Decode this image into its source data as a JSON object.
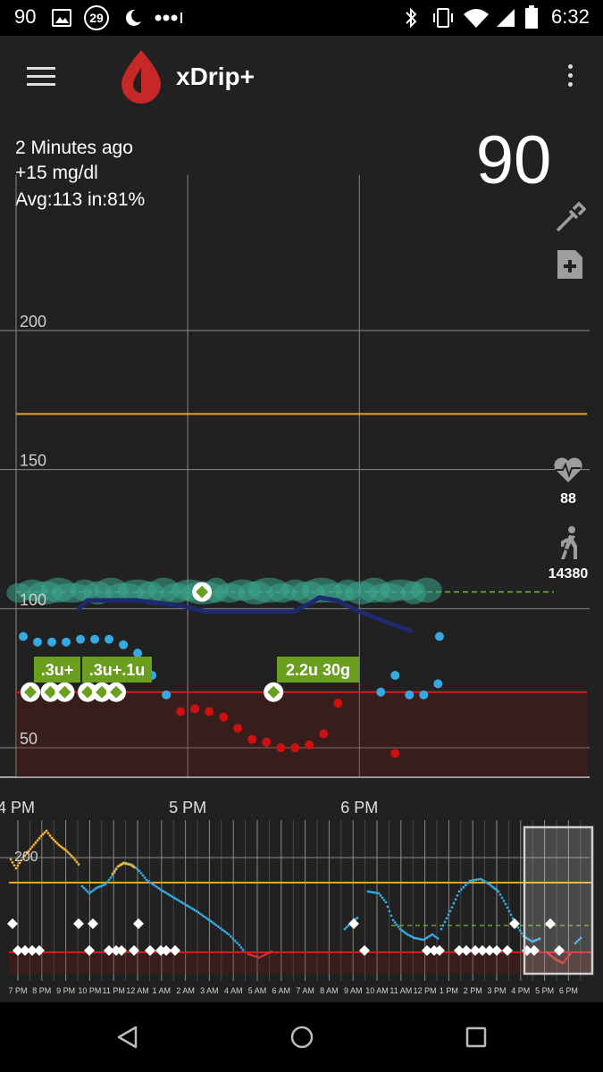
{
  "status_bar": {
    "notification_count": "90",
    "calendar_day": "29",
    "time": "6:32"
  },
  "app_bar": {
    "title": "xDrip+"
  },
  "info": {
    "last_reading": "2 Minutes ago",
    "delta": "+15 mg/dl",
    "stats": "Avg:113 in:81%"
  },
  "current_bg": "90",
  "heart_rate": "88",
  "steps": "14380",
  "colors": {
    "high_line": "#e8a531",
    "low_line": "#cc1f1f",
    "in_range": "#36a9e1",
    "low_reading": "#cc1111",
    "high_reading": "#f5b432",
    "treatment_label": "#6a9e1f",
    "iob_cloud": "#3aa58c",
    "prediction": "#1f2a6e"
  },
  "icons": [
    "menu-icon",
    "xdrip-drop-logo",
    "overflow-icon",
    "blood-test-icon",
    "add-note-icon",
    "heart-icon",
    "walk-icon",
    "back-icon",
    "home-icon",
    "recents-icon"
  ],
  "treatments": {
    "labels": [
      ".3u+",
      ".3u+.1u",
      "2.2u 30g"
    ]
  },
  "chart_data": [
    {
      "type": "scatter",
      "name": "main",
      "y_ticks": [
        200,
        150,
        100,
        50
      ],
      "x_ticks": [
        "4 PM",
        "5 PM",
        "6 PM"
      ],
      "ylim": [
        20,
        240
      ],
      "x_unit": "minutes after 4 PM",
      "xlim": [
        0,
        188
      ],
      "high_threshold": 170,
      "low_threshold": 70,
      "target": 106,
      "series": [
        {
          "name": "in_range",
          "x": [
            2.5,
            7.5,
            12.5,
            17.5,
            22.5,
            27.5,
            32.5,
            37.5,
            42.5,
            47.5,
            52.5,
            127.5,
            132.5,
            137.5,
            142.5,
            147.5
          ],
          "y": [
            90,
            88,
            88,
            88,
            89,
            89,
            89,
            87,
            84,
            76,
            69,
            70,
            76,
            69,
            69,
            73
          ]
        },
        {
          "name": "low",
          "x": [
            57.5,
            62.5,
            67.5,
            72.5,
            77.5,
            82.5,
            87.5,
            92.5,
            97.5,
            102.5,
            107.5,
            112.5,
            132.5
          ],
          "y": [
            63,
            64,
            63,
            61,
            57,
            53,
            52,
            50,
            50,
            51,
            55,
            66,
            48
          ]
        },
        {
          "name": "current",
          "x": [
            148
          ],
          "y": [
            90
          ]
        }
      ],
      "treatments": [
        {
          "x": 5,
          "y": 70
        },
        {
          "x": 12,
          "y": 70
        },
        {
          "x": 17,
          "y": 70
        },
        {
          "x": 25,
          "y": 70
        },
        {
          "x": 30,
          "y": 70
        },
        {
          "x": 35,
          "y": 70
        },
        {
          "x": 65,
          "y": 106
        },
        {
          "x": 90,
          "y": 70
        }
      ]
    },
    {
      "type": "line",
      "name": "overview",
      "y_ticks": [
        200
      ],
      "x_ticks": [
        "7 PM",
        "8 PM",
        "9 PM",
        "10 PM",
        "11 PM",
        "12 AM",
        "1 AM",
        "2 AM",
        "3 AM",
        "4 AM",
        "5 AM",
        "6 AM",
        "7 AM",
        "8 AM",
        "9 AM",
        "10 AM",
        "11 AM",
        "12 PM",
        "1 PM",
        "2 PM",
        "3 PM",
        "4 PM",
        "5 PM",
        "6 PM"
      ]
    }
  ]
}
